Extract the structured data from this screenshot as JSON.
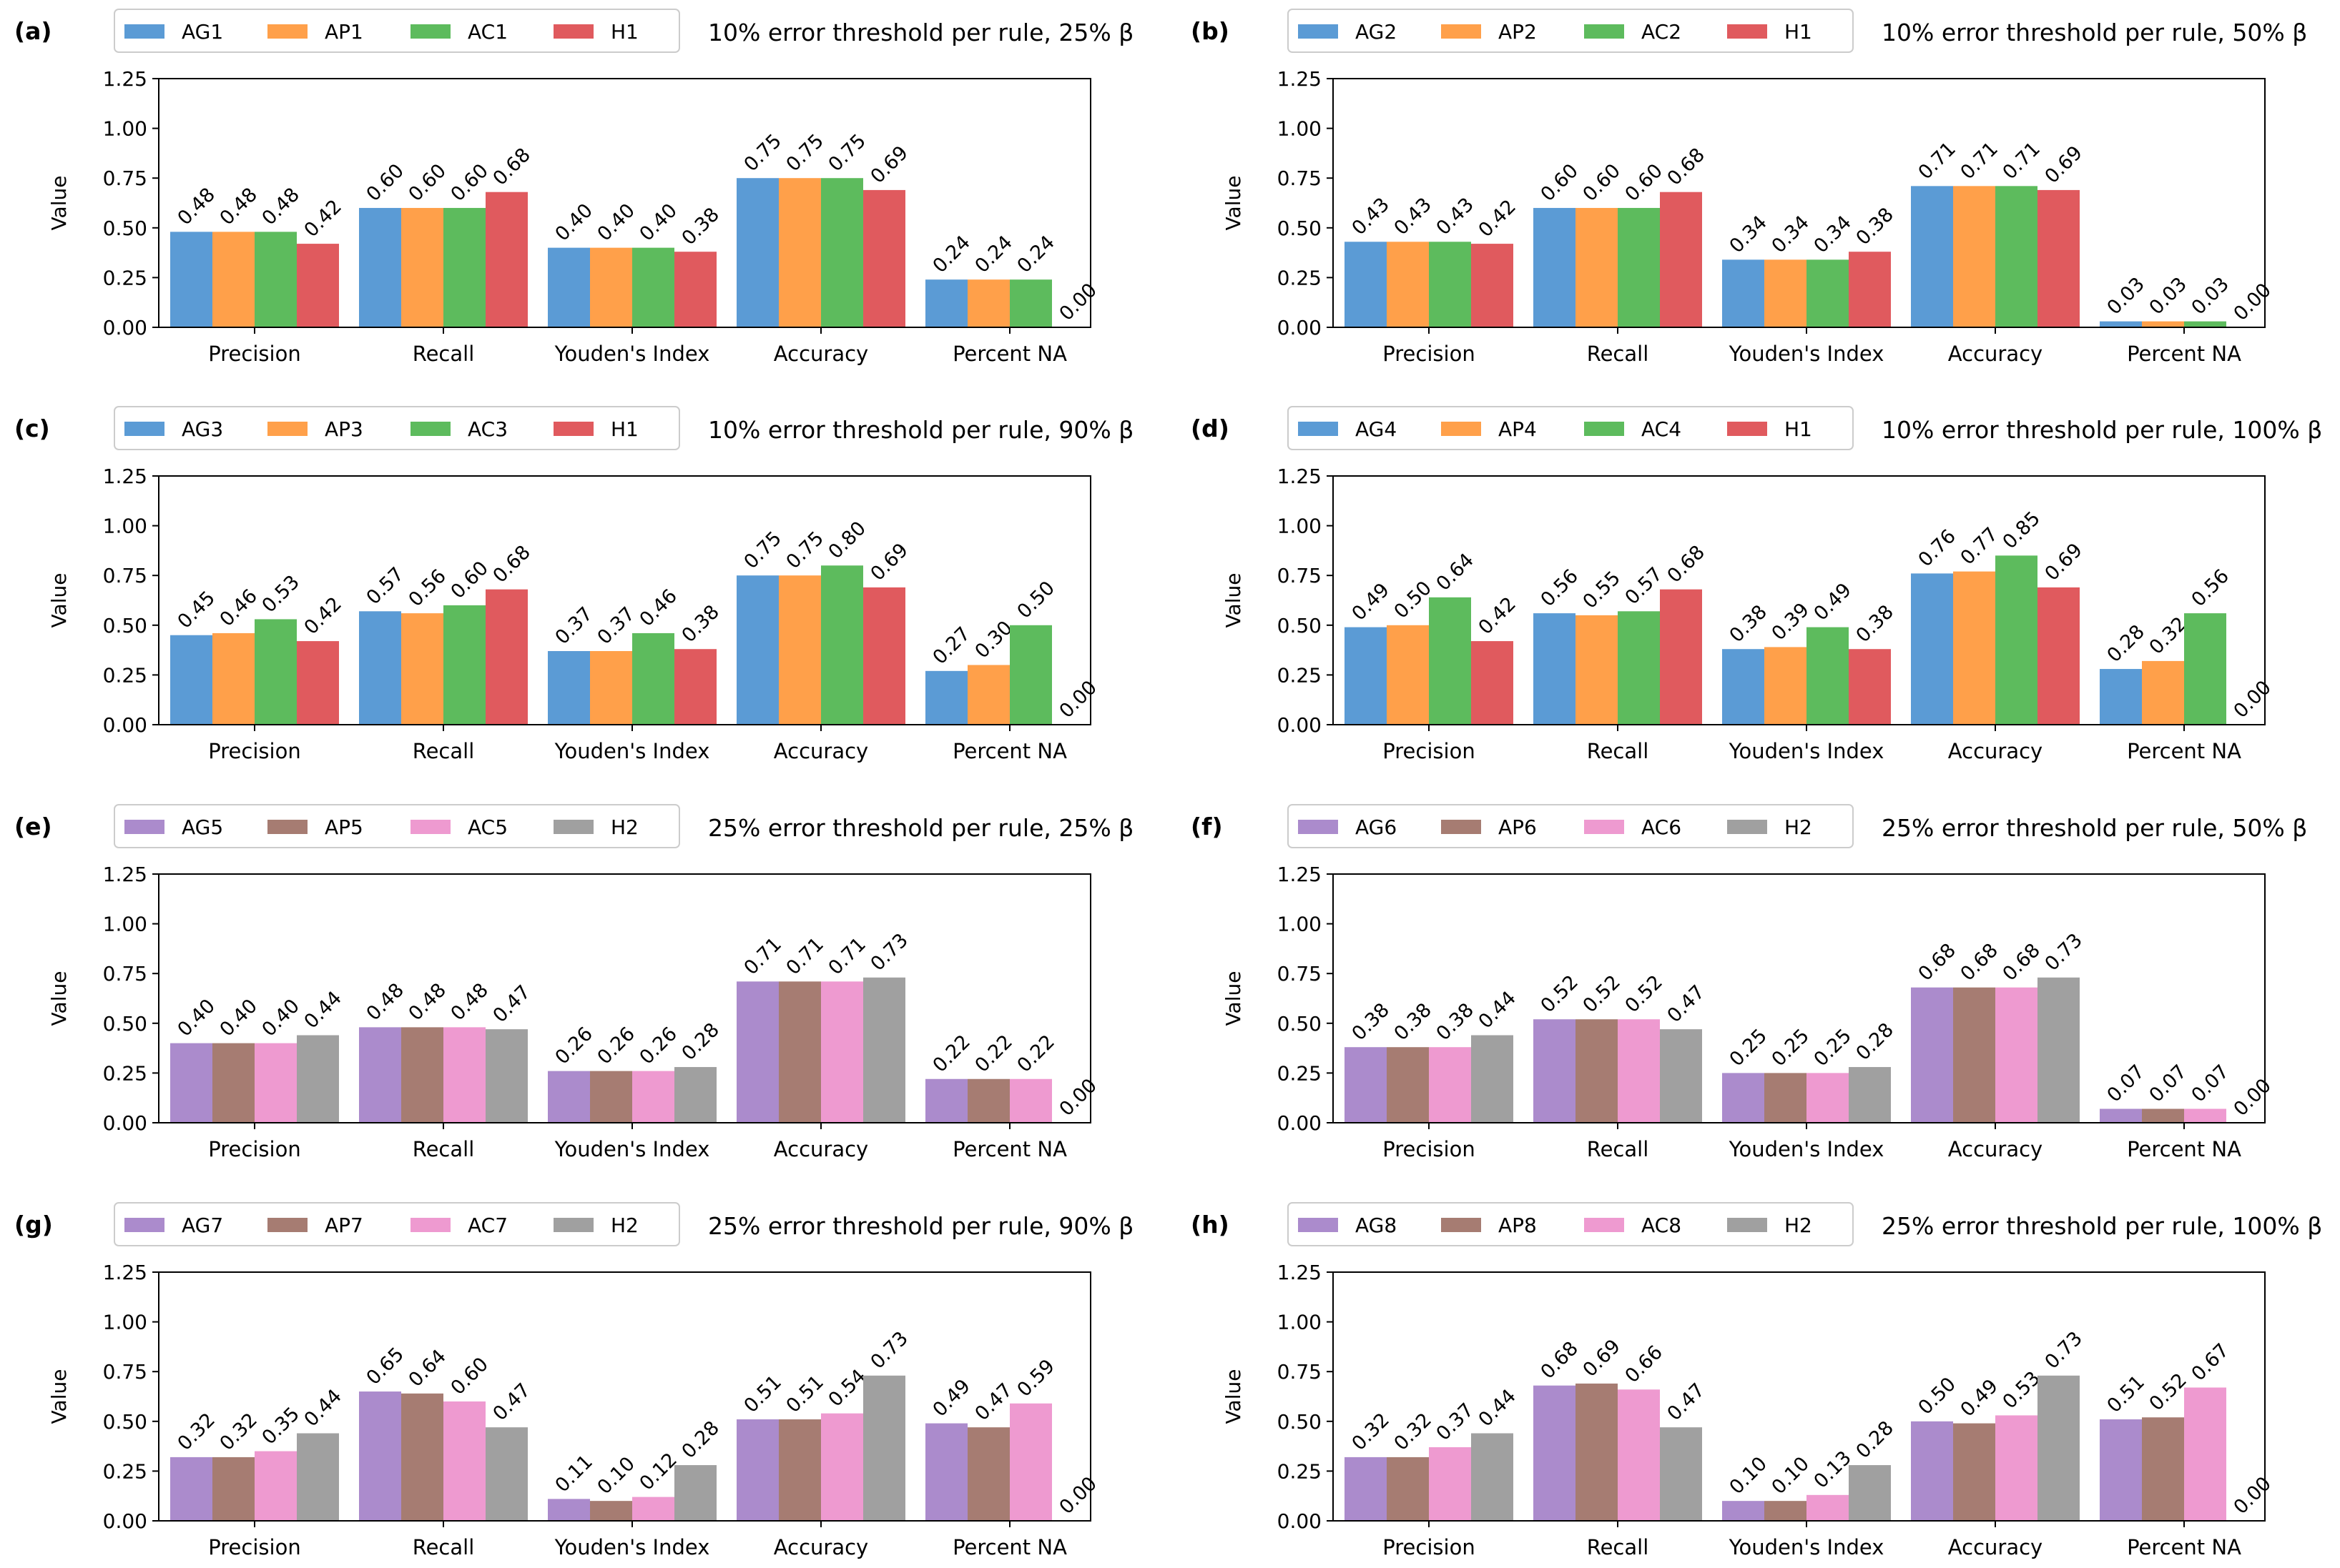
{
  "colors": {
    "AG_a": "#5b9bd5",
    "AP_a": "#ffa04a",
    "AC_a": "#5dbb5d",
    "H_a": "#e05a5e",
    "AG_b": "#ab8bcc",
    "AP_b": "#a67c72",
    "AC_b": "#ee9ad0",
    "H_b": "#a0a0a0"
  },
  "chart_data": [
    {
      "type": "bar",
      "panel": "(a)",
      "title": "10% error threshold per rule, 25% β",
      "categories": [
        "Precision",
        "Recall",
        "Youden's Index",
        "Accuracy",
        "Percent NA"
      ],
      "ylabel": "Value",
      "ylim": [
        0,
        1.25
      ],
      "yticks": [
        "0.00",
        "0.25",
        "0.50",
        "0.75",
        "1.00",
        "1.25"
      ],
      "legend_position": "top-left",
      "series": [
        {
          "name": "AG1",
          "color": "#5b9bd5",
          "values": [
            0.48,
            0.6,
            0.4,
            0.75,
            0.24
          ],
          "labels": [
            "0.48",
            "0.60",
            "0.40",
            "0.75",
            "0.24"
          ]
        },
        {
          "name": "AP1",
          "color": "#ffa04a",
          "values": [
            0.48,
            0.6,
            0.4,
            0.75,
            0.24
          ],
          "labels": [
            "0.48",
            "0.60",
            "0.40",
            "0.75",
            "0.24"
          ]
        },
        {
          "name": "AC1",
          "color": "#5dbb5d",
          "values": [
            0.48,
            0.6,
            0.4,
            0.75,
            0.24
          ],
          "labels": [
            "0.48",
            "0.60",
            "0.40",
            "0.75",
            "0.24"
          ]
        },
        {
          "name": "H1",
          "color": "#e05a5e",
          "values": [
            0.42,
            0.68,
            0.38,
            0.69,
            0.0
          ],
          "labels": [
            "0.42",
            "0.68",
            "0.38",
            "0.69",
            "0.00"
          ]
        }
      ]
    },
    {
      "type": "bar",
      "panel": "(b)",
      "title": "10% error threshold per rule, 50% β",
      "categories": [
        "Precision",
        "Recall",
        "Youden's Index",
        "Accuracy",
        "Percent NA"
      ],
      "ylabel": "Value",
      "ylim": [
        0,
        1.25
      ],
      "yticks": [
        "0.00",
        "0.25",
        "0.50",
        "0.75",
        "1.00",
        "1.25"
      ],
      "legend_position": "top-left",
      "series": [
        {
          "name": "AG2",
          "color": "#5b9bd5",
          "values": [
            0.43,
            0.6,
            0.34,
            0.71,
            0.03
          ],
          "labels": [
            "0.43",
            "0.60",
            "0.34",
            "0.71",
            "0.03"
          ]
        },
        {
          "name": "AP2",
          "color": "#ffa04a",
          "values": [
            0.43,
            0.6,
            0.34,
            0.71,
            0.03
          ],
          "labels": [
            "0.43",
            "0.60",
            "0.34",
            "0.71",
            "0.03"
          ]
        },
        {
          "name": "AC2",
          "color": "#5dbb5d",
          "values": [
            0.43,
            0.6,
            0.34,
            0.71,
            0.03
          ],
          "labels": [
            "0.43",
            "0.60",
            "0.34",
            "0.71",
            "0.03"
          ]
        },
        {
          "name": "H1",
          "color": "#e05a5e",
          "values": [
            0.42,
            0.68,
            0.38,
            0.69,
            0.0
          ],
          "labels": [
            "0.42",
            "0.68",
            "0.38",
            "0.69",
            "0.00"
          ]
        }
      ]
    },
    {
      "type": "bar",
      "panel": "(c)",
      "title": "10% error threshold per rule, 90% β",
      "categories": [
        "Precision",
        "Recall",
        "Youden's Index",
        "Accuracy",
        "Percent NA"
      ],
      "ylabel": "Value",
      "ylim": [
        0,
        1.25
      ],
      "yticks": [
        "0.00",
        "0.25",
        "0.50",
        "0.75",
        "1.00",
        "1.25"
      ],
      "legend_position": "top-left",
      "series": [
        {
          "name": "AG3",
          "color": "#5b9bd5",
          "values": [
            0.45,
            0.57,
            0.37,
            0.75,
            0.27
          ],
          "labels": [
            "0.45",
            "0.57",
            "0.37",
            "0.75",
            "0.27"
          ]
        },
        {
          "name": "AP3",
          "color": "#ffa04a",
          "values": [
            0.46,
            0.56,
            0.37,
            0.75,
            0.3
          ],
          "labels": [
            "0.46",
            "0.56",
            "0.37",
            "0.75",
            "0.30"
          ]
        },
        {
          "name": "AC3",
          "color": "#5dbb5d",
          "values": [
            0.53,
            0.6,
            0.46,
            0.8,
            0.5
          ],
          "labels": [
            "0.53",
            "0.60",
            "0.46",
            "0.80",
            "0.50"
          ]
        },
        {
          "name": "H1",
          "color": "#e05a5e",
          "values": [
            0.42,
            0.68,
            0.38,
            0.69,
            0.0
          ],
          "labels": [
            "0.42",
            "0.68",
            "0.38",
            "0.69",
            "0.00"
          ]
        }
      ]
    },
    {
      "type": "bar",
      "panel": "(d)",
      "title": "10% error threshold per rule, 100% β",
      "categories": [
        "Precision",
        "Recall",
        "Youden's Index",
        "Accuracy",
        "Percent NA"
      ],
      "ylabel": "Value",
      "ylim": [
        0,
        1.25
      ],
      "yticks": [
        "0.00",
        "0.25",
        "0.50",
        "0.75",
        "1.00",
        "1.25"
      ],
      "legend_position": "top-left",
      "series": [
        {
          "name": "AG4",
          "color": "#5b9bd5",
          "values": [
            0.49,
            0.56,
            0.38,
            0.76,
            0.28
          ],
          "labels": [
            "0.49",
            "0.56",
            "0.38",
            "0.76",
            "0.28"
          ]
        },
        {
          "name": "AP4",
          "color": "#ffa04a",
          "values": [
            0.5,
            0.55,
            0.39,
            0.77,
            0.32
          ],
          "labels": [
            "0.50",
            "0.55",
            "0.39",
            "0.77",
            "0.32"
          ]
        },
        {
          "name": "AC4",
          "color": "#5dbb5d",
          "values": [
            0.64,
            0.57,
            0.49,
            0.85,
            0.56
          ],
          "labels": [
            "0.64",
            "0.57",
            "0.49",
            "0.85",
            "0.56"
          ]
        },
        {
          "name": "H1",
          "color": "#e05a5e",
          "values": [
            0.42,
            0.68,
            0.38,
            0.69,
            0.0
          ],
          "labels": [
            "0.42",
            "0.68",
            "0.38",
            "0.69",
            "0.00"
          ]
        }
      ]
    },
    {
      "type": "bar",
      "panel": "(e)",
      "title": "25% error threshold per rule, 25% β",
      "categories": [
        "Precision",
        "Recall",
        "Youden's Index",
        "Accuracy",
        "Percent NA"
      ],
      "ylabel": "Value",
      "ylim": [
        0,
        1.25
      ],
      "yticks": [
        "0.00",
        "0.25",
        "0.50",
        "0.75",
        "1.00",
        "1.25"
      ],
      "legend_position": "top-left",
      "series": [
        {
          "name": "AG5",
          "color": "#ab8bcc",
          "values": [
            0.4,
            0.48,
            0.26,
            0.71,
            0.22
          ],
          "labels": [
            "0.40",
            "0.48",
            "0.26",
            "0.71",
            "0.22"
          ]
        },
        {
          "name": "AP5",
          "color": "#a67c72",
          "values": [
            0.4,
            0.48,
            0.26,
            0.71,
            0.22
          ],
          "labels": [
            "0.40",
            "0.48",
            "0.26",
            "0.71",
            "0.22"
          ]
        },
        {
          "name": "AC5",
          "color": "#ee9ad0",
          "values": [
            0.4,
            0.48,
            0.26,
            0.71,
            0.22
          ],
          "labels": [
            "0.40",
            "0.48",
            "0.26",
            "0.71",
            "0.22"
          ]
        },
        {
          "name": "H2",
          "color": "#a0a0a0",
          "values": [
            0.44,
            0.47,
            0.28,
            0.73,
            0.0
          ],
          "labels": [
            "0.44",
            "0.47",
            "0.28",
            "0.73",
            "0.00"
          ]
        }
      ]
    },
    {
      "type": "bar",
      "panel": "(f)",
      "title": "25% error threshold per rule, 50% β",
      "categories": [
        "Precision",
        "Recall",
        "Youden's Index",
        "Accuracy",
        "Percent NA"
      ],
      "ylabel": "Value",
      "ylim": [
        0,
        1.25
      ],
      "yticks": [
        "0.00",
        "0.25",
        "0.50",
        "0.75",
        "1.00",
        "1.25"
      ],
      "legend_position": "top-left",
      "series": [
        {
          "name": "AG6",
          "color": "#ab8bcc",
          "values": [
            0.38,
            0.52,
            0.25,
            0.68,
            0.07
          ],
          "labels": [
            "0.38",
            "0.52",
            "0.25",
            "0.68",
            "0.07"
          ]
        },
        {
          "name": "AP6",
          "color": "#a67c72",
          "values": [
            0.38,
            0.52,
            0.25,
            0.68,
            0.07
          ],
          "labels": [
            "0.38",
            "0.52",
            "0.25",
            "0.68",
            "0.07"
          ]
        },
        {
          "name": "AC6",
          "color": "#ee9ad0",
          "values": [
            0.38,
            0.52,
            0.25,
            0.68,
            0.07
          ],
          "labels": [
            "0.38",
            "0.52",
            "0.25",
            "0.68",
            "0.07"
          ]
        },
        {
          "name": "H2",
          "color": "#a0a0a0",
          "values": [
            0.44,
            0.47,
            0.28,
            0.73,
            0.0
          ],
          "labels": [
            "0.44",
            "0.47",
            "0.28",
            "0.73",
            "0.00"
          ]
        }
      ]
    },
    {
      "type": "bar",
      "panel": "(g)",
      "title": "25% error threshold per rule, 90% β",
      "categories": [
        "Precision",
        "Recall",
        "Youden's Index",
        "Accuracy",
        "Percent NA"
      ],
      "ylabel": "Value",
      "ylim": [
        0,
        1.25
      ],
      "yticks": [
        "0.00",
        "0.25",
        "0.50",
        "0.75",
        "1.00",
        "1.25"
      ],
      "legend_position": "top-left",
      "series": [
        {
          "name": "AG7",
          "color": "#ab8bcc",
          "values": [
            0.32,
            0.65,
            0.11,
            0.51,
            0.49
          ],
          "labels": [
            "0.32",
            "0.65",
            "0.11",
            "0.51",
            "0.49"
          ]
        },
        {
          "name": "AP7",
          "color": "#a67c72",
          "values": [
            0.32,
            0.64,
            0.1,
            0.51,
            0.47
          ],
          "labels": [
            "0.32",
            "0.64",
            "0.10",
            "0.51",
            "0.47"
          ]
        },
        {
          "name": "AC7",
          "color": "#ee9ad0",
          "values": [
            0.35,
            0.6,
            0.12,
            0.54,
            0.59
          ],
          "labels": [
            "0.35",
            "0.60",
            "0.12",
            "0.54",
            "0.59"
          ]
        },
        {
          "name": "H2",
          "color": "#a0a0a0",
          "values": [
            0.44,
            0.47,
            0.28,
            0.73,
            0.0
          ],
          "labels": [
            "0.44",
            "0.47",
            "0.28",
            "0.73",
            "0.00"
          ]
        }
      ]
    },
    {
      "type": "bar",
      "panel": "(h)",
      "title": "25% error threshold per rule, 100% β",
      "categories": [
        "Precision",
        "Recall",
        "Youden's Index",
        "Accuracy",
        "Percent NA"
      ],
      "ylabel": "Value",
      "ylim": [
        0,
        1.25
      ],
      "yticks": [
        "0.00",
        "0.25",
        "0.50",
        "0.75",
        "1.00",
        "1.25"
      ],
      "legend_position": "top-left",
      "series": [
        {
          "name": "AG8",
          "color": "#ab8bcc",
          "values": [
            0.32,
            0.68,
            0.1,
            0.5,
            0.51
          ],
          "labels": [
            "0.32",
            "0.68",
            "0.10",
            "0.50",
            "0.51"
          ]
        },
        {
          "name": "AP8",
          "color": "#a67c72",
          "values": [
            0.32,
            0.69,
            0.1,
            0.49,
            0.52
          ],
          "labels": [
            "0.32",
            "0.69",
            "0.10",
            "0.49",
            "0.52"
          ]
        },
        {
          "name": "AC8",
          "color": "#ee9ad0",
          "values": [
            0.37,
            0.66,
            0.13,
            0.53,
            0.67
          ],
          "labels": [
            "0.37",
            "0.66",
            "0.13",
            "0.53",
            "0.67"
          ]
        },
        {
          "name": "H2",
          "color": "#a0a0a0",
          "values": [
            0.44,
            0.47,
            0.28,
            0.73,
            0.0
          ],
          "labels": [
            "0.44",
            "0.47",
            "0.28",
            "0.73",
            "0.00"
          ]
        }
      ]
    }
  ]
}
